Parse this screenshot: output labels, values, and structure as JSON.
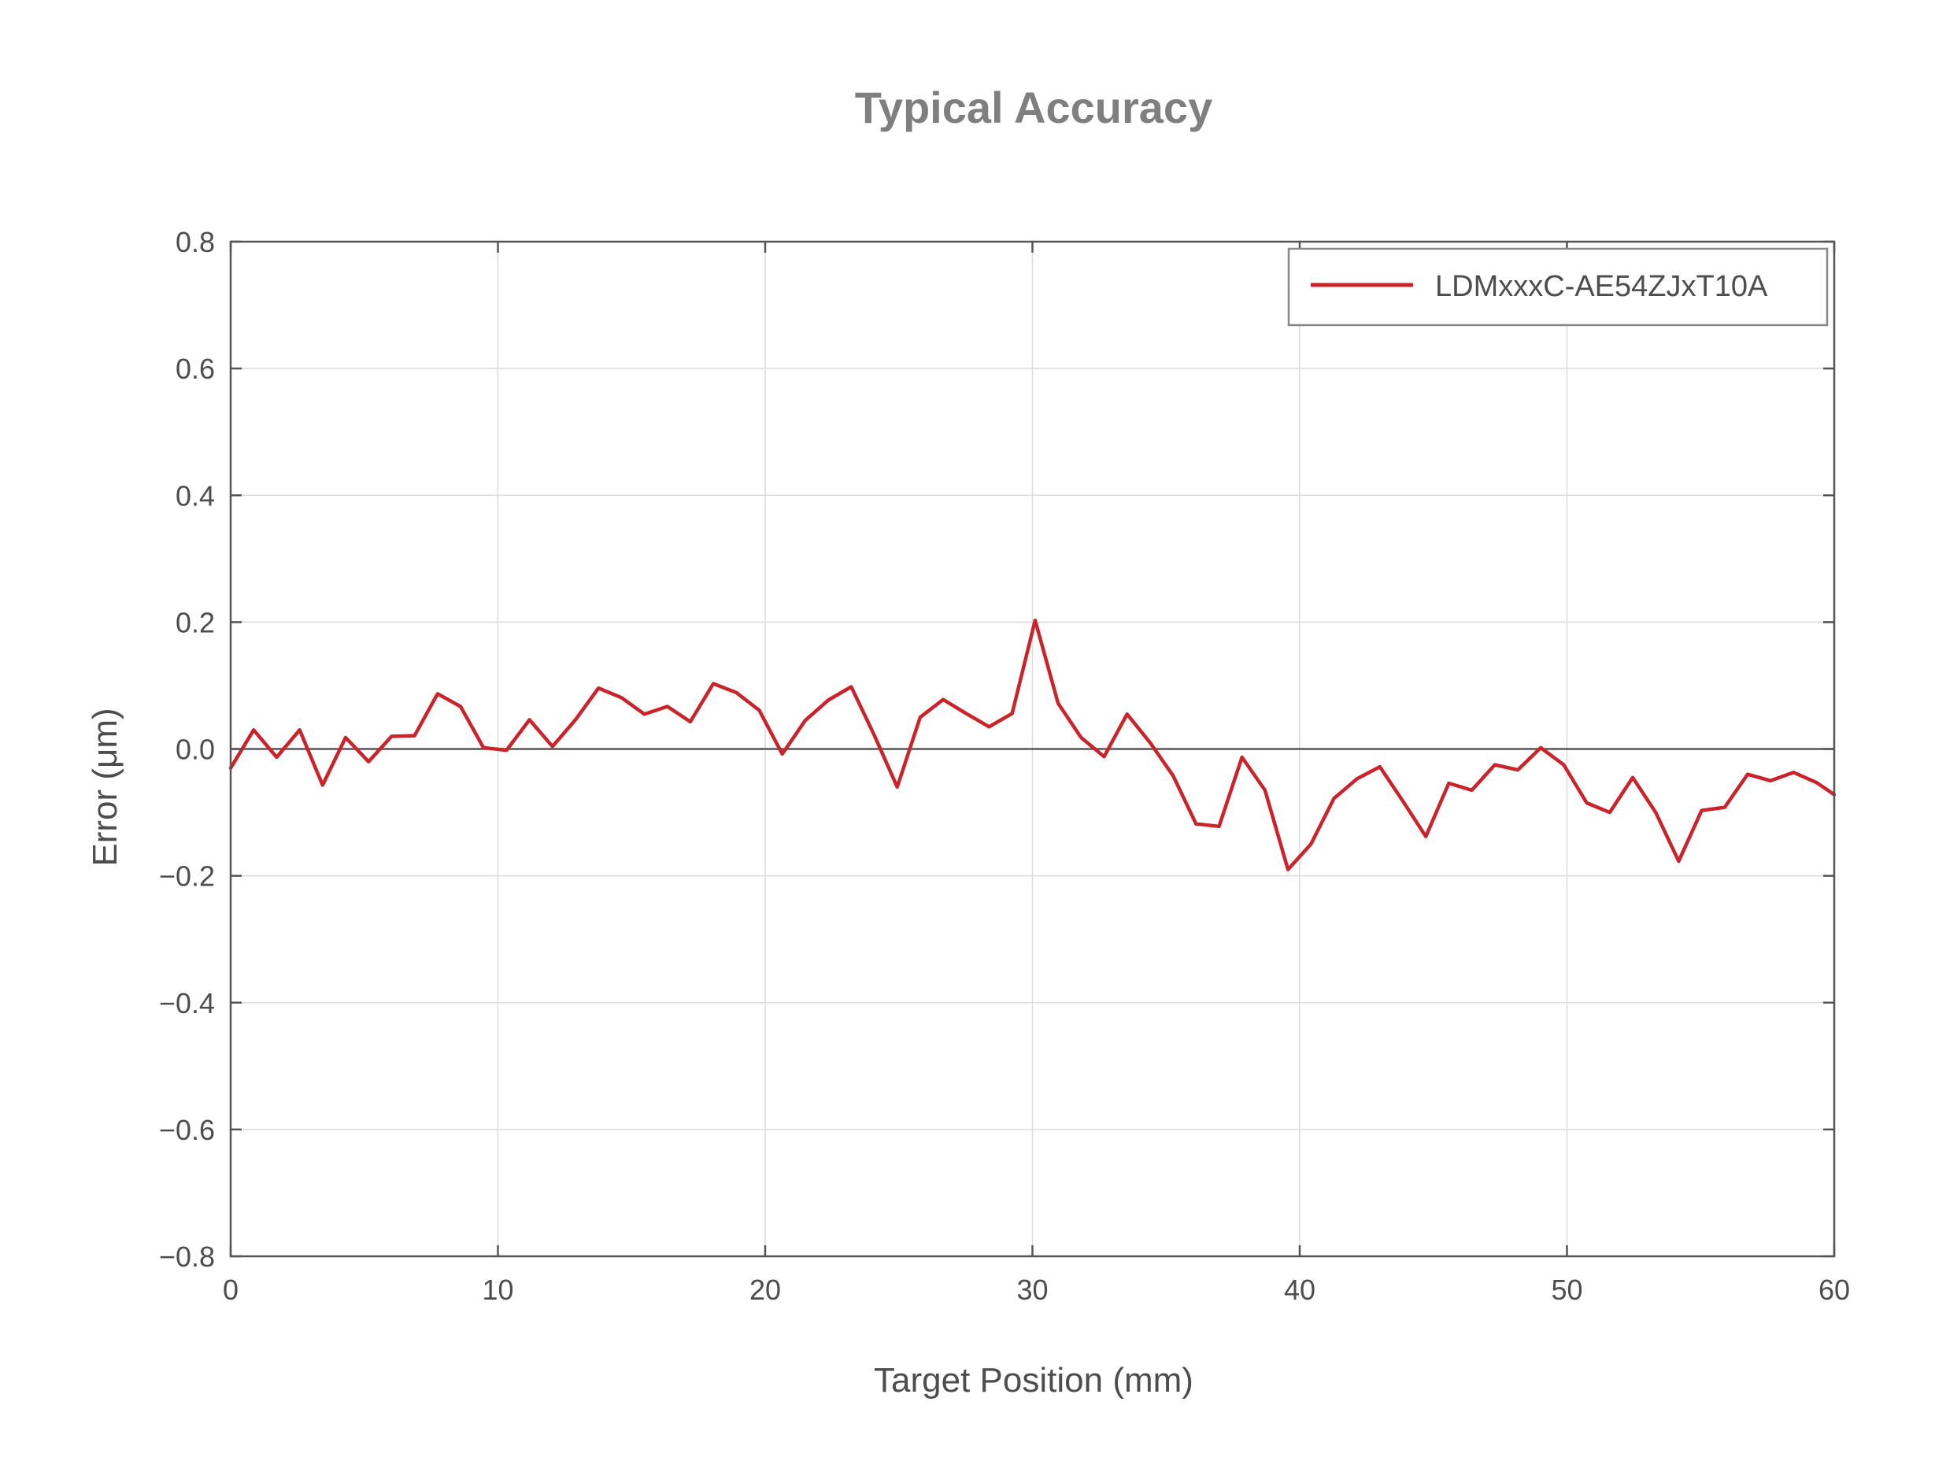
{
  "chart_data": {
    "type": "line",
    "title": "Typical Accuracy",
    "xlabel": "Target Position (mm)",
    "ylabel": "Error (μm)",
    "xlim": [
      0,
      60
    ],
    "ylim": [
      -0.8,
      0.8
    ],
    "xticks": [
      0,
      10,
      20,
      30,
      40,
      50,
      60
    ],
    "xtick_labels": [
      "0",
      "10",
      "20",
      "30",
      "40",
      "50",
      "60"
    ],
    "yticks": [
      0.8,
      0.6,
      0.4,
      0.2,
      0.0,
      -0.2,
      -0.4,
      -0.6,
      -0.8
    ],
    "ytick_labels": [
      "0.8",
      "0.6",
      "0.4",
      "0.2",
      "0.0",
      "−0.2",
      "−0.4",
      "−0.6",
      "−0.8"
    ],
    "grid": true,
    "zero_line": true,
    "legend_position": "top-right",
    "series": [
      {
        "name": "LDMxxxC-AE54ZJxT10A",
        "color": "#cc2229",
        "x": [
          0,
          0.86,
          1.72,
          2.58,
          3.44,
          4.3,
          5.16,
          6.02,
          6.88,
          7.74,
          8.6,
          9.46,
          10.32,
          11.18,
          12.04,
          12.9,
          13.76,
          14.62,
          15.48,
          16.34,
          17.2,
          18.06,
          18.92,
          19.78,
          20.64,
          21.5,
          22.36,
          23.22,
          24.08,
          24.94,
          25.8,
          26.66,
          27.52,
          28.38,
          29.24,
          30.1,
          30.96,
          31.82,
          32.68,
          33.54,
          34.4,
          35.26,
          36.12,
          36.98,
          37.84,
          38.7,
          39.56,
          40.42,
          41.28,
          42.14,
          43.0,
          43.86,
          44.72,
          45.58,
          46.44,
          47.3,
          48.16,
          49.02,
          49.88,
          50.74,
          51.6,
          52.46,
          53.32,
          54.18,
          55.04,
          55.9,
          56.76,
          57.62,
          58.48,
          59.34,
          60.0
        ],
        "y": [
          -0.03,
          0.03,
          -0.013,
          0.03,
          -0.057,
          0.018,
          -0.02,
          0.02,
          0.021,
          0.087,
          0.067,
          0.002,
          -0.002,
          0.046,
          0.004,
          0.046,
          0.096,
          0.081,
          0.055,
          0.067,
          0.043,
          0.103,
          0.089,
          0.061,
          -0.008,
          0.045,
          0.077,
          0.098,
          0.022,
          -0.06,
          0.05,
          0.078,
          0.056,
          0.035,
          0.056,
          0.203,
          0.072,
          0.018,
          -0.012,
          0.055,
          0.01,
          -0.042,
          -0.118,
          -0.122,
          -0.013,
          -0.065,
          -0.19,
          -0.15,
          -0.078,
          -0.047,
          -0.028,
          -0.082,
          -0.138,
          -0.054,
          -0.065,
          -0.025,
          -0.033,
          0.002,
          -0.025,
          -0.085,
          -0.1,
          -0.045,
          -0.1,
          -0.177,
          -0.097,
          -0.092,
          -0.04,
          -0.05,
          -0.037,
          -0.053,
          -0.072
        ]
      }
    ]
  }
}
